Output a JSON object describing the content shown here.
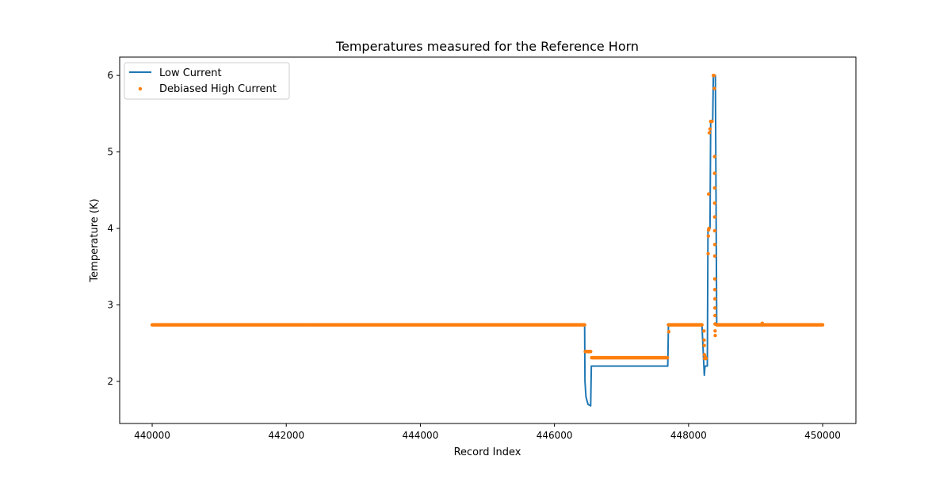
{
  "chart_data": {
    "type": "line",
    "title": "Temperatures measured for the Reference Horn",
    "xlabel": "Record Index",
    "ylabel": "Temperature (K)",
    "xlim": [
      439515,
      450496
    ],
    "ylim": [
      1.45,
      6.24
    ],
    "xticks": [
      440000,
      442000,
      444000,
      446000,
      448000,
      450000
    ],
    "yticks": [
      2,
      3,
      4,
      5,
      6
    ],
    "grid": false,
    "legend_position": "top-left",
    "colors": {
      "low": "#1f77b4",
      "high": "#ff7f0e"
    },
    "series": [
      {
        "name": "Low Current",
        "kind": "line",
        "points": [
          [
            440000,
            2.74
          ],
          [
            446450,
            2.74
          ],
          [
            446455,
            2.0
          ],
          [
            446470,
            1.8
          ],
          [
            446500,
            1.7
          ],
          [
            446540,
            1.68
          ],
          [
            446550,
            2.2
          ],
          [
            447690,
            2.2
          ],
          [
            447700,
            2.74
          ],
          [
            448200,
            2.74
          ],
          [
            448235,
            2.08
          ],
          [
            448245,
            2.2
          ],
          [
            448280,
            2.2
          ],
          [
            448290,
            4.0
          ],
          [
            448320,
            4.0
          ],
          [
            448330,
            5.4
          ],
          [
            448360,
            5.4
          ],
          [
            448370,
            6.0
          ],
          [
            448400,
            6.0
          ],
          [
            448420,
            2.74
          ],
          [
            450000,
            2.74
          ]
        ]
      },
      {
        "name": "Debiased High Current",
        "kind": "scatter",
        "segments": [
          {
            "x_start": 440000,
            "x_end": 446450,
            "y": 2.74,
            "step": 10
          },
          {
            "x_start": 446460,
            "x_end": 446540,
            "y": 2.39,
            "step": 10
          },
          {
            "x_start": 446555,
            "x_end": 447690,
            "y": 2.31,
            "step": 10
          },
          {
            "x_start": 447700,
            "x_end": 448200,
            "y": 2.74,
            "step": 10
          },
          {
            "x_start": 448420,
            "x_end": 450000,
            "y": 2.74,
            "step": 10
          }
        ],
        "points": [
          [
            447705,
            2.65
          ],
          [
            448230,
            2.66
          ],
          [
            448232,
            2.54
          ],
          [
            448234,
            2.47
          ],
          [
            448236,
            2.35
          ],
          [
            448240,
            2.3
          ],
          [
            448250,
            2.32
          ],
          [
            448260,
            2.3
          ],
          [
            448292,
            3.67
          ],
          [
            448295,
            3.9
          ],
          [
            448298,
            3.98
          ],
          [
            448305,
            4.0
          ],
          [
            448300,
            4.45
          ],
          [
            448310,
            5.25
          ],
          [
            448320,
            5.3
          ],
          [
            448330,
            5.4
          ],
          [
            448350,
            5.4
          ],
          [
            448370,
            6.0
          ],
          [
            448380,
            6.0
          ],
          [
            448385,
            5.83
          ],
          [
            448388,
            4.94
          ],
          [
            448388,
            4.72
          ],
          [
            448389,
            4.53
          ],
          [
            448389,
            4.33
          ],
          [
            448390,
            4.15
          ],
          [
            448390,
            3.97
          ],
          [
            448391,
            3.79
          ],
          [
            448391,
            3.64
          ],
          [
            448392,
            3.34
          ],
          [
            448392,
            3.2
          ],
          [
            448393,
            3.08
          ],
          [
            448393,
            2.96
          ],
          [
            448394,
            2.86
          ],
          [
            448395,
            2.75
          ],
          [
            448396,
            2.66
          ],
          [
            448398,
            2.6
          ],
          [
            449100,
            2.76
          ]
        ]
      }
    ]
  }
}
